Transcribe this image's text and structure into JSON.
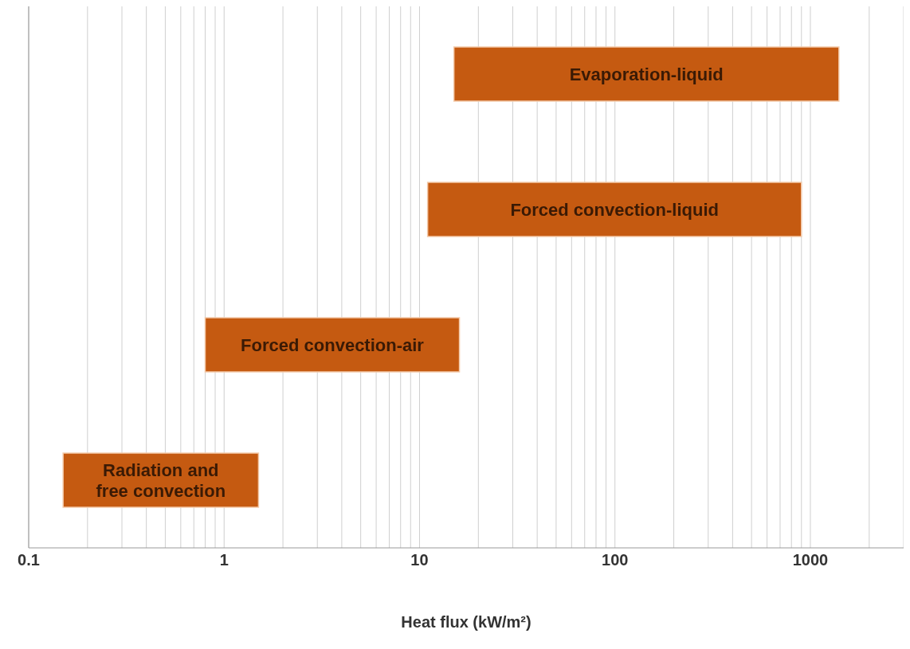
{
  "chart_data": {
    "type": "bar",
    "orientation": "horizontal",
    "xlabel": "Heat flux (kW/m²)",
    "categories": [
      "Evaporation-liquid",
      "Forced convection-liquid",
      "Forced convection-air",
      "Radiation and free convection"
    ],
    "base": [
      15,
      11,
      0.8,
      0.15
    ],
    "values": [
      1385,
      889,
      15.2,
      1.35
    ],
    "color": "#c55a11",
    "log": "x",
    "xlim": [
      0.1,
      3000
    ],
    "xticks": [
      0.1,
      {
        "value": 0.2,
        "label": null
      },
      {
        "value": 0.3,
        "label": null
      },
      {
        "value": 0.4,
        "label": null
      },
      {
        "value": 0.5,
        "label": null
      },
      {
        "value": 0.6,
        "label": null
      },
      {
        "value": 0.7,
        "label": null
      },
      {
        "value": 0.8,
        "label": null
      },
      {
        "value": 0.9,
        "label": null
      },
      1,
      {
        "value": 2,
        "label": null
      },
      {
        "value": 3,
        "label": null
      },
      {
        "value": 4,
        "label": null
      },
      {
        "value": 5,
        "label": null
      },
      {
        "value": 6,
        "label": null
      },
      {
        "value": 7,
        "label": null
      },
      {
        "value": 8,
        "label": null
      },
      {
        "value": 9,
        "label": null
      },
      10,
      {
        "value": 20,
        "label": null
      },
      {
        "value": 30,
        "label": null
      },
      {
        "value": 40,
        "label": null
      },
      {
        "value": 50,
        "label": null
      },
      {
        "value": 60,
        "label": null
      },
      {
        "value": 70,
        "label": null
      },
      {
        "value": 80,
        "label": null
      },
      {
        "value": 90,
        "label": null
      },
      100,
      {
        "value": 200,
        "label": null
      },
      {
        "value": 300,
        "label": null
      },
      {
        "value": 400,
        "label": null
      },
      {
        "value": 500,
        "label": null
      },
      {
        "value": 600,
        "label": null
      },
      {
        "value": 700,
        "label": null
      },
      {
        "value": 800,
        "label": null
      },
      {
        "value": 900,
        "label": null
      },
      1000,
      {
        "value": 2000,
        "label": null
      }
    ],
    "grid": "x",
    "tick_labels": "x"
  }
}
